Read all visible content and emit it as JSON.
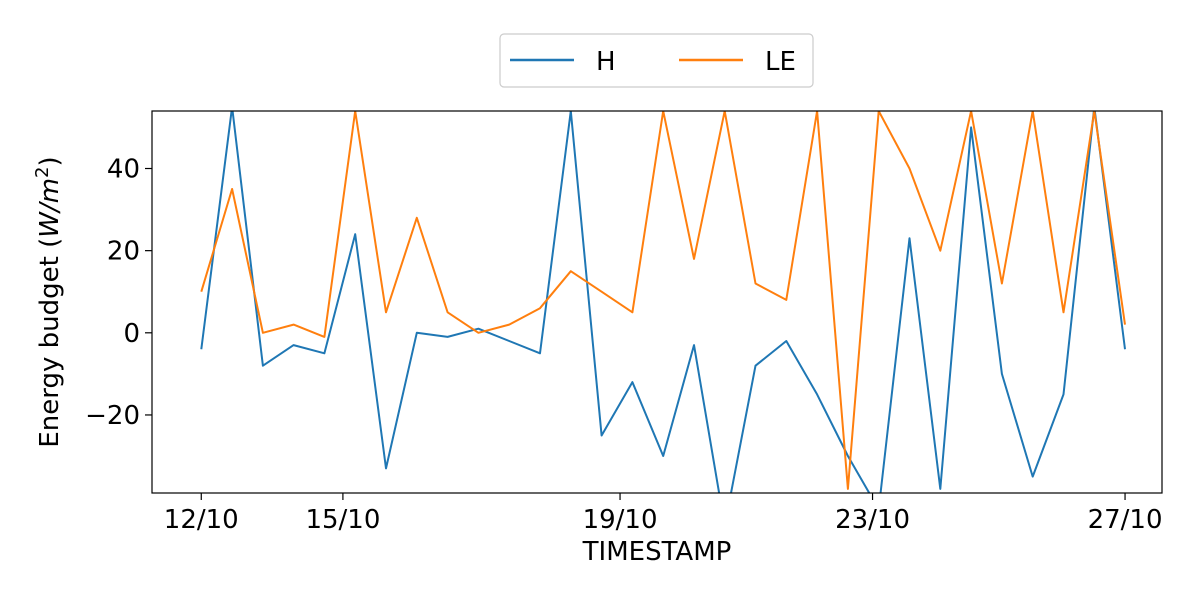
{
  "chart_data": {
    "type": "line",
    "title": "",
    "xlabel": "TIMESTAMP",
    "ylabel_prefix": "Energy budget (",
    "ylabel_unit_base": "W/m",
    "ylabel_unit_exp": "2",
    "ylabel_suffix": ")",
    "x_start": "2023-10-12",
    "x_end": "2023-10-27",
    "xlim": [
      "2023-10-11T05:00",
      "2023-10-27T15:00"
    ],
    "ylim": [
      -39,
      54
    ],
    "x_ticks": [
      "12/10",
      "15/10",
      "19/10",
      "23/10",
      "27/10"
    ],
    "y_ticks": [
      "40",
      "20",
      "0",
      "−20"
    ],
    "grid": false,
    "legend_position": "top-center",
    "series": [
      {
        "name": "H",
        "color": "#1f77b4",
        "x": [
          12.0,
          12.5,
          13.0,
          13.5,
          14.0,
          14.5,
          15.0,
          15.5,
          16.0,
          16.5,
          17.0,
          17.5,
          18.0,
          18.5,
          19.0,
          19.5,
          20.0,
          20.5,
          21.0,
          21.5,
          22.0,
          22.5,
          23.0,
          23.5,
          24.0,
          24.5,
          25.0,
          25.5,
          26.0,
          26.5,
          27.0
        ],
        "values": [
          -4,
          55,
          -8,
          -3,
          -5,
          24,
          -33,
          0,
          -1,
          1,
          -2,
          -5,
          54,
          -25,
          -12,
          -30,
          -3,
          -47,
          -8,
          -2,
          -15,
          -30,
          -43,
          23,
          -38,
          50,
          -10,
          -35,
          -15,
          55,
          -4
        ]
      },
      {
        "name": "LE",
        "color": "#ff7f0e",
        "x": [
          12.0,
          12.5,
          13.0,
          13.5,
          14.0,
          14.5,
          15.0,
          15.5,
          16.0,
          16.5,
          17.0,
          17.5,
          18.0,
          18.5,
          19.0,
          19.5,
          20.0,
          20.5,
          21.0,
          21.5,
          22.0,
          22.5,
          23.0,
          23.5,
          24.0,
          24.5,
          25.0,
          25.5,
          26.0,
          26.5,
          27.0
        ],
        "values": [
          10,
          35,
          0,
          2,
          -1,
          54,
          5,
          28,
          5,
          0,
          2,
          6,
          15,
          10,
          5,
          54,
          18,
          54,
          12,
          8,
          54,
          -38,
          54,
          40,
          20,
          54,
          12,
          54,
          5,
          54,
          2
        ]
      }
    ]
  }
}
